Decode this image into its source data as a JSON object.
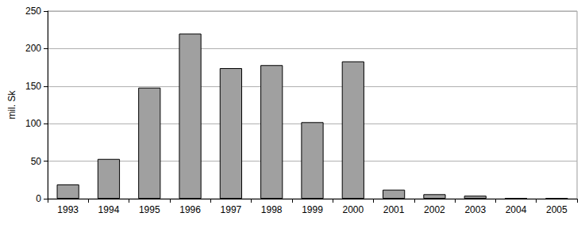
{
  "chart_data": {
    "type": "bar",
    "y_label": "mil. Sk",
    "categories": [
      "1993",
      "1994",
      "1995",
      "1996",
      "1997",
      "1998",
      "1999",
      "2000",
      "2001",
      "2002",
      "2003",
      "2004",
      "2005"
    ],
    "values": [
      19,
      53,
      148,
      220,
      174,
      178,
      102,
      183,
      12,
      6,
      4,
      1,
      0.5
    ],
    "color": "#a0a0a0",
    "ylim": [
      0,
      250
    ],
    "yticks": [
      0,
      50,
      100,
      150,
      200,
      250
    ],
    "grid": true
  }
}
